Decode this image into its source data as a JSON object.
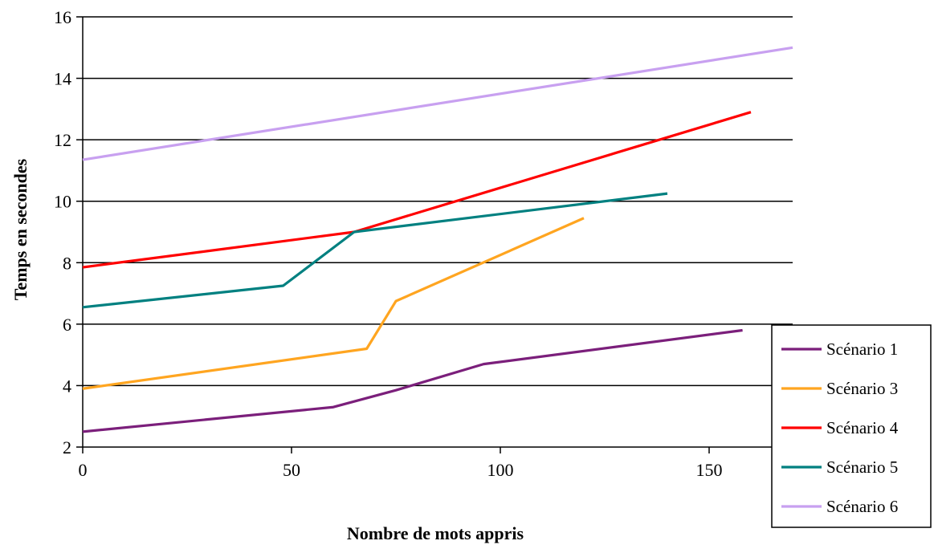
{
  "chart_data": {
    "type": "line",
    "title": "",
    "xlabel": "Nombre de mots appris",
    "ylabel": "Temps en secondes",
    "xlim": [
      0,
      170
    ],
    "ylim": [
      2,
      16
    ],
    "xticks": [
      0,
      50,
      100,
      150
    ],
    "yticks": [
      2,
      4,
      6,
      8,
      10,
      12,
      14,
      16
    ],
    "grid": "horizontal",
    "legend_position": "right",
    "series": [
      {
        "name": "Scénario 1",
        "color": "#7B1F7B",
        "x": [
          0,
          60,
          75,
          96,
          158
        ],
        "y": [
          2.5,
          3.3,
          3.85,
          4.7,
          5.8
        ]
      },
      {
        "name": "Scénario 3",
        "color": "#FFA520",
        "x": [
          0,
          68,
          75,
          120
        ],
        "y": [
          3.9,
          5.2,
          6.75,
          9.45
        ]
      },
      {
        "name": "Scénario 4",
        "color": "#FF0000",
        "x": [
          0,
          65,
          160
        ],
        "y": [
          7.85,
          9.0,
          12.9
        ]
      },
      {
        "name": "Scénario 5",
        "color": "#008080",
        "x": [
          0,
          48,
          65,
          140
        ],
        "y": [
          6.55,
          7.25,
          9.0,
          10.25
        ]
      },
      {
        "name": "Scénario 6",
        "color": "#C8A0F0",
        "x": [
          0,
          170
        ],
        "y": [
          11.35,
          15.0
        ]
      }
    ]
  }
}
